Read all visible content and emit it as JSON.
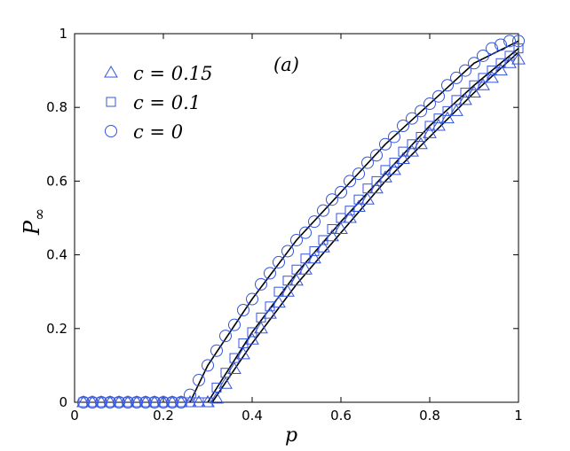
{
  "chart_data": {
    "type": "scatter",
    "title": "",
    "xlabel": "p",
    "ylabel": "P∞",
    "xlim": [
      0,
      1
    ],
    "ylim": [
      0,
      1
    ],
    "xticks": [
      "0",
      "0.2",
      "0.4",
      "0.6",
      "0.8",
      "1"
    ],
    "yticks": [
      "0",
      "0.2",
      "0.4",
      "0.6",
      "0.8",
      "1"
    ],
    "grid": false,
    "legend_position": "top-left",
    "annotation": "(a)",
    "marker_color": "#3355dd",
    "line_color": "#000000",
    "series": [
      {
        "name": "c = 0.15",
        "marker": "triangle",
        "x": [
          0.02,
          0.04,
          0.06,
          0.08,
          0.1,
          0.12,
          0.14,
          0.16,
          0.18,
          0.2,
          0.22,
          0.24,
          0.26,
          0.28,
          0.3,
          0.32,
          0.34,
          0.36,
          0.38,
          0.4,
          0.42,
          0.44,
          0.46,
          0.48,
          0.5,
          0.52,
          0.54,
          0.56,
          0.58,
          0.6,
          0.62,
          0.64,
          0.66,
          0.68,
          0.7,
          0.72,
          0.74,
          0.76,
          0.78,
          0.8,
          0.82,
          0.84,
          0.86,
          0.88,
          0.9,
          0.92,
          0.94,
          0.96,
          0.98,
          1.0
        ],
        "y": [
          0,
          0,
          0,
          0,
          0,
          0,
          0,
          0,
          0,
          0,
          0,
          0,
          0,
          0,
          0,
          0.01,
          0.05,
          0.09,
          0.13,
          0.17,
          0.2,
          0.24,
          0.27,
          0.3,
          0.33,
          0.36,
          0.39,
          0.42,
          0.45,
          0.47,
          0.5,
          0.53,
          0.55,
          0.58,
          0.61,
          0.63,
          0.66,
          0.68,
          0.7,
          0.73,
          0.75,
          0.77,
          0.79,
          0.82,
          0.84,
          0.86,
          0.88,
          0.9,
          0.92,
          0.93
        ]
      },
      {
        "name": "c = 0.1",
        "marker": "square",
        "x": [
          0.02,
          0.04,
          0.06,
          0.08,
          0.1,
          0.12,
          0.14,
          0.16,
          0.18,
          0.2,
          0.22,
          0.24,
          0.26,
          0.28,
          0.3,
          0.32,
          0.34,
          0.36,
          0.38,
          0.4,
          0.42,
          0.44,
          0.46,
          0.48,
          0.5,
          0.52,
          0.54,
          0.56,
          0.58,
          0.6,
          0.62,
          0.64,
          0.66,
          0.68,
          0.7,
          0.72,
          0.74,
          0.76,
          0.78,
          0.8,
          0.82,
          0.84,
          0.86,
          0.88,
          0.9,
          0.92,
          0.94,
          0.96,
          0.98,
          1.0
        ],
        "y": [
          0,
          0,
          0,
          0,
          0,
          0,
          0,
          0,
          0,
          0,
          0,
          0,
          0,
          0,
          0,
          0.04,
          0.08,
          0.12,
          0.16,
          0.19,
          0.23,
          0.26,
          0.3,
          0.33,
          0.36,
          0.39,
          0.41,
          0.44,
          0.47,
          0.5,
          0.52,
          0.55,
          0.58,
          0.6,
          0.63,
          0.65,
          0.68,
          0.7,
          0.72,
          0.75,
          0.77,
          0.79,
          0.82,
          0.84,
          0.86,
          0.88,
          0.9,
          0.92,
          0.94,
          0.96
        ]
      },
      {
        "name": "c = 0",
        "marker": "circle",
        "x": [
          0.02,
          0.04,
          0.06,
          0.08,
          0.1,
          0.12,
          0.14,
          0.16,
          0.18,
          0.2,
          0.22,
          0.24,
          0.26,
          0.28,
          0.3,
          0.32,
          0.34,
          0.36,
          0.38,
          0.4,
          0.42,
          0.44,
          0.46,
          0.48,
          0.5,
          0.52,
          0.54,
          0.56,
          0.58,
          0.6,
          0.62,
          0.64,
          0.66,
          0.68,
          0.7,
          0.72,
          0.74,
          0.76,
          0.78,
          0.8,
          0.82,
          0.84,
          0.86,
          0.88,
          0.9,
          0.92,
          0.94,
          0.96,
          0.98,
          1.0
        ],
        "y": [
          0,
          0,
          0,
          0,
          0,
          0,
          0,
          0,
          0,
          0,
          0,
          0,
          0.02,
          0.06,
          0.1,
          0.14,
          0.18,
          0.21,
          0.25,
          0.28,
          0.32,
          0.35,
          0.38,
          0.41,
          0.44,
          0.46,
          0.49,
          0.52,
          0.55,
          0.57,
          0.6,
          0.62,
          0.65,
          0.67,
          0.7,
          0.72,
          0.75,
          0.77,
          0.79,
          0.81,
          0.83,
          0.86,
          0.88,
          0.9,
          0.92,
          0.94,
          0.96,
          0.97,
          0.98,
          0.98
        ]
      }
    ],
    "fit_lines": [
      {
        "x": [
          0.31,
          0.4,
          0.5,
          0.6,
          0.7,
          0.8,
          0.9,
          1.0
        ],
        "y": [
          0,
          0.16,
          0.32,
          0.46,
          0.6,
          0.72,
          0.84,
          0.95
        ]
      },
      {
        "x": [
          0.3,
          0.4,
          0.5,
          0.6,
          0.7,
          0.8,
          0.9,
          1.0
        ],
        "y": [
          0,
          0.19,
          0.35,
          0.49,
          0.62,
          0.75,
          0.86,
          0.96
        ]
      },
      {
        "x": [
          0.26,
          0.3,
          0.4,
          0.5,
          0.6,
          0.7,
          0.8,
          0.9,
          1.0
        ],
        "y": [
          0,
          0.1,
          0.28,
          0.44,
          0.57,
          0.7,
          0.81,
          0.92,
          0.98
        ]
      }
    ]
  }
}
